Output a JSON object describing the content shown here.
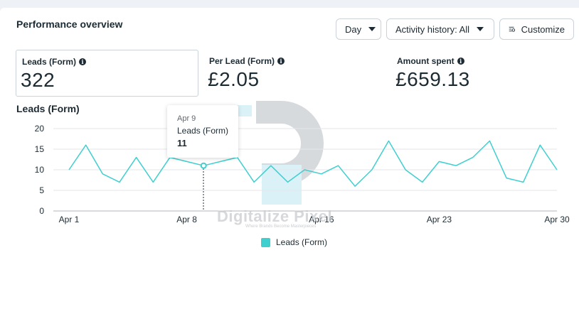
{
  "header": {
    "title": "Performance overview",
    "day_label": "Day",
    "activity_label": "Activity history: All",
    "customize_label": "Customize"
  },
  "metrics": [
    {
      "label": "Leads (Form)",
      "value": "322"
    },
    {
      "label": "Per Lead (Form)",
      "value": "£2.05"
    },
    {
      "label": "Amount spent",
      "value": "£659.13"
    }
  ],
  "chart_title": "Leads (Form)",
  "tooltip": {
    "date": "Apr 9",
    "label": "Leads (Form)",
    "value": "11"
  },
  "legend_label": "Leads (Form)",
  "watermark": {
    "text": "Digitalize Pixel",
    "tagline": "Where Brands Become Masterpieces"
  },
  "colors": {
    "series": "#3fcfcf",
    "accent_dark": "#1c2b33"
  },
  "chart_data": {
    "type": "line",
    "x": [
      "Apr 1",
      "Apr 2",
      "Apr 3",
      "Apr 4",
      "Apr 5",
      "Apr 6",
      "Apr 7",
      "Apr 8",
      "Apr 9",
      "Apr 10",
      "Apr 11",
      "Apr 12",
      "Apr 13",
      "Apr 14",
      "Apr 15",
      "Apr 16",
      "Apr 17",
      "Apr 18",
      "Apr 19",
      "Apr 20",
      "Apr 21",
      "Apr 22",
      "Apr 23",
      "Apr 24",
      "Apr 25",
      "Apr 26",
      "Apr 27",
      "Apr 28",
      "Apr 29",
      "Apr 30"
    ],
    "x_tick_labels": [
      "Apr 1",
      "Apr 8",
      "Apr 16",
      "Apr 23",
      "Apr 30"
    ],
    "series": [
      {
        "name": "Leads (Form)",
        "values": [
          10,
          16,
          9,
          7,
          13,
          7,
          13,
          12,
          11,
          12,
          13,
          7,
          11,
          7,
          10,
          9,
          11,
          6,
          10,
          17,
          10,
          7,
          12,
          11,
          13,
          17,
          8,
          7,
          16,
          10
        ]
      }
    ],
    "y_ticks": [
      0,
      5,
      10,
      15,
      20
    ],
    "ylim": [
      0,
      20
    ],
    "highlight_index": 8,
    "grid": true,
    "legend": "bottom-center"
  }
}
